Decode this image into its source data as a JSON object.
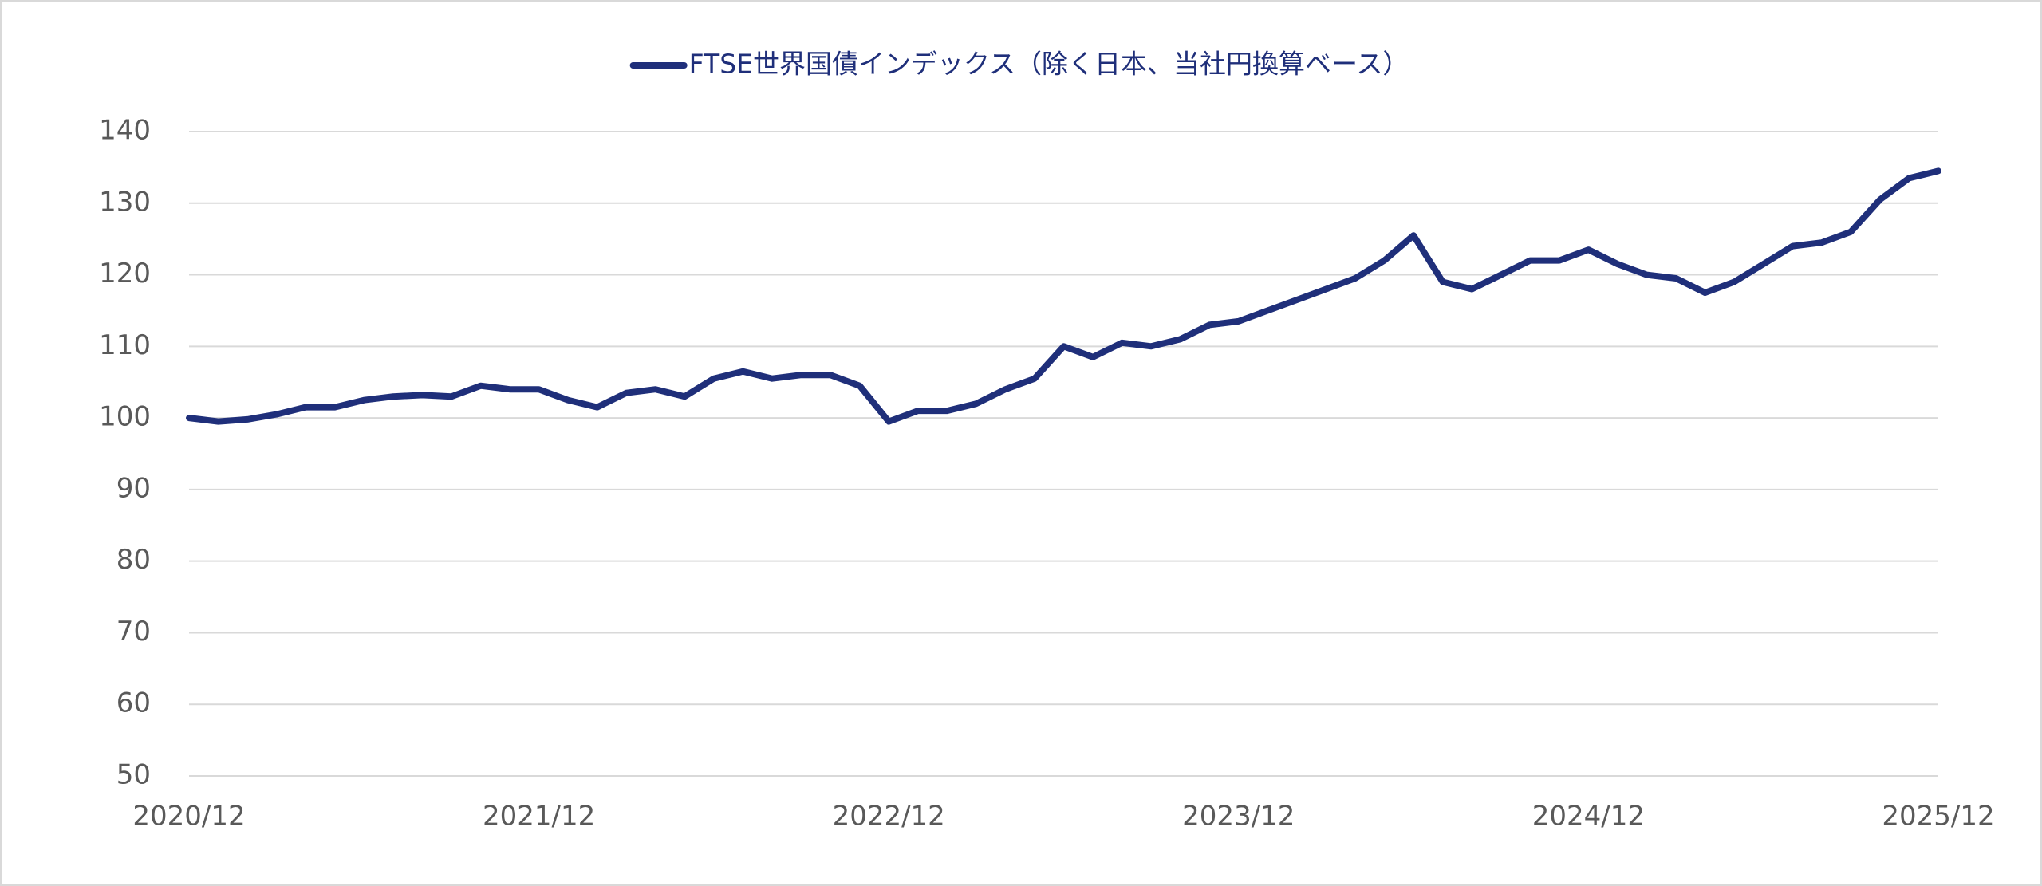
{
  "chart_data": {
    "type": "line",
    "categories": [
      "2020/12",
      null,
      null,
      null,
      null,
      null,
      null,
      null,
      null,
      null,
      null,
      null,
      "2021/12",
      null,
      null,
      null,
      null,
      null,
      null,
      null,
      null,
      null,
      null,
      null,
      "2022/12",
      null,
      null,
      null,
      null,
      null,
      null,
      null,
      null,
      null,
      null,
      null,
      "2023/12",
      null,
      null,
      null,
      null,
      null,
      null,
      null,
      null,
      null,
      null,
      null,
      "2024/12",
      null,
      null,
      null,
      null,
      null,
      null,
      null,
      null,
      null,
      null,
      null,
      "2025/12"
    ],
    "series": [
      {
        "name": "FTSE世界国債インデックス（除く日本、当社円換算ベース）",
        "color": "#1f2f7a",
        "values": [
          100,
          99.5,
          99.8,
          100.5,
          101.5,
          101.5,
          102.5,
          103,
          103.2,
          103,
          104.5,
          104,
          104,
          102.5,
          101.5,
          103.5,
          104,
          103,
          105.5,
          106.5,
          105.5,
          106,
          106,
          104.5,
          99.5,
          101,
          101,
          102,
          104,
          105.5,
          110,
          108.5,
          110.5,
          110,
          111,
          113,
          113.5,
          115,
          116.5,
          118,
          119.5,
          122,
          125.5,
          119,
          118,
          120,
          122,
          122,
          123.5,
          121.5,
          120,
          119.5,
          117.5,
          119,
          121.5,
          124,
          124.5,
          126,
          130.5,
          133.5,
          134.5
        ]
      }
    ],
    "ylim": [
      50,
      140
    ],
    "yticks": [
      50,
      60,
      70,
      80,
      90,
      100,
      110,
      120,
      130,
      140
    ],
    "grid": true,
    "legend": "top"
  }
}
